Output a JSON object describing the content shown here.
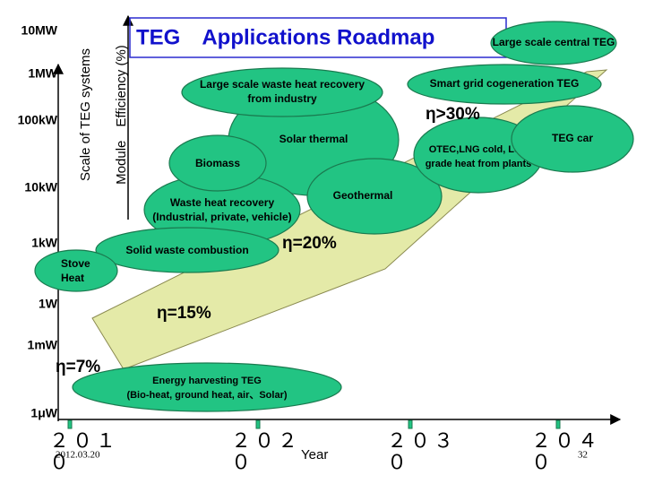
{
  "title": "TEG　Applications Roadmap",
  "y_axis_title": "Scale of TEG systems",
  "efficiency_axis_title": "Module　Efficiency (%)",
  "scale_labels": [
    "10MW",
    "1MW",
    "100kW",
    "10kW",
    "1kW",
    "1W",
    "1mW",
    "1μW"
  ],
  "year_labels": [
    "２０１０",
    "２０２０",
    "２０３０",
    "２０４０"
  ],
  "x_axis_title": "Year",
  "date": "2012.03.20",
  "page_number": "32",
  "efficiency_labels": [
    "η=7%",
    "η=15%",
    "η=20%",
    "η>30%"
  ],
  "applications": [
    {
      "label": [
        "Large scale central TEG"
      ]
    },
    {
      "label": [
        "Smart grid cogeneration TEG"
      ]
    },
    {
      "label": [
        "Solar thermal"
      ]
    },
    {
      "label": [
        "Large scale waste heat recovery",
        "from industry"
      ]
    },
    {
      "label": [
        "Geothermal"
      ]
    },
    {
      "label": [
        "OTEC,LNG cold, Low",
        "grade heat from plants"
      ]
    },
    {
      "label": [
        "TEG car"
      ]
    },
    {
      "label": [
        "Waste heat recovery",
        "(Industrial, private, vehicle)"
      ]
    },
    {
      "label": [
        "Biomass"
      ]
    },
    {
      "label": [
        "Solid waste combustion"
      ]
    },
    {
      "label": [
        "Stove",
        "Heat"
      ]
    },
    {
      "label": [
        "Energy harvesting TEG",
        "(Bio-heat, ground heat, air、Solar)"
      ]
    }
  ]
}
